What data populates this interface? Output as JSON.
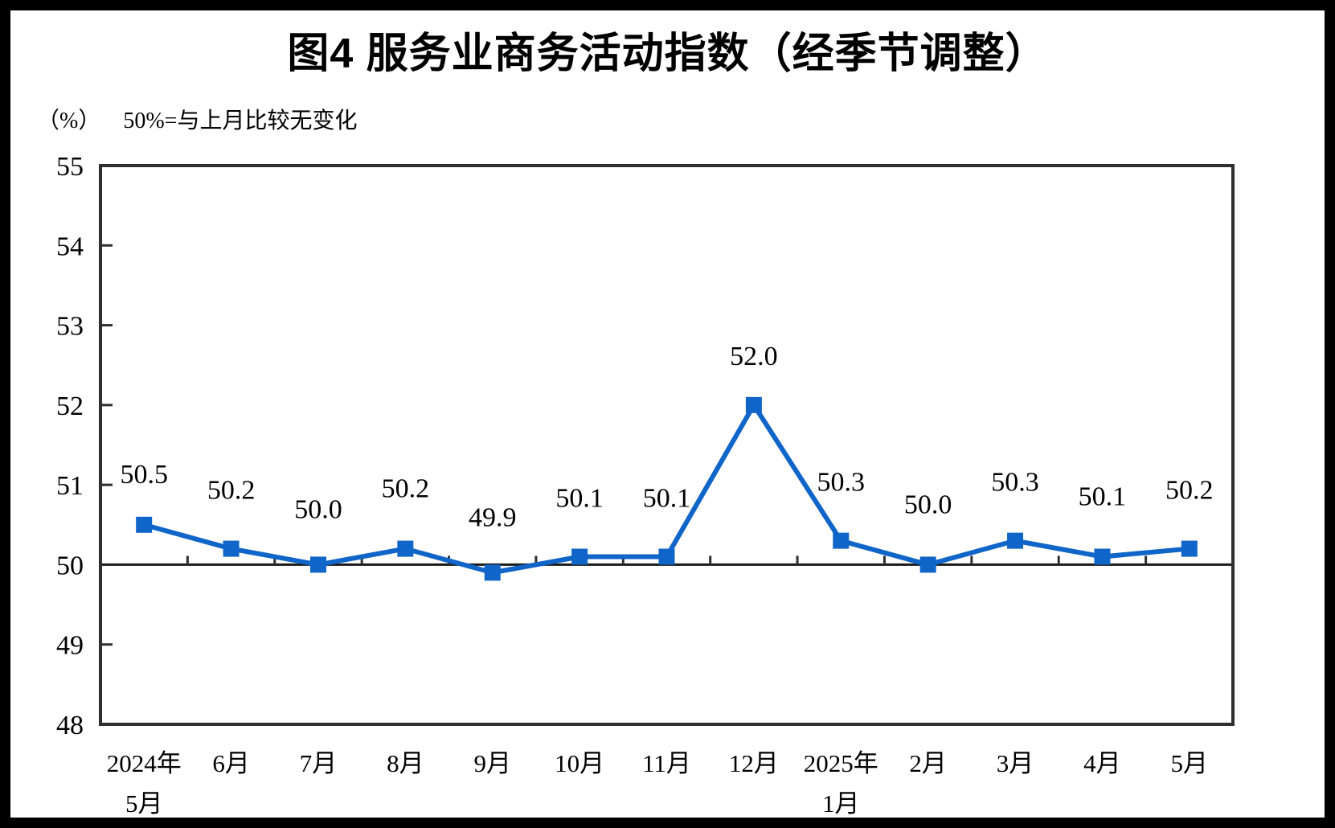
{
  "header": {
    "title": "图4 服务业商务活动指数（经季节调整）",
    "unit_label": "（%）",
    "subtitle": "50%=与上月比较无变化"
  },
  "chart_data": {
    "type": "line",
    "title": "图4 服务业商务活动指数（经季节调整）",
    "unit_label": "（%）",
    "subtitle": "50%=与上月比较无变化",
    "categories": [
      "2024年5月",
      "6月",
      "7月",
      "8月",
      "9月",
      "10月",
      "11月",
      "12月",
      "2025年1月",
      "2月",
      "3月",
      "4月",
      "5月"
    ],
    "x_tick_line1": [
      "2024年",
      "6月",
      "7月",
      "8月",
      "9月",
      "10月",
      "11月",
      "12月",
      "2025年",
      "2月",
      "3月",
      "4月",
      "5月"
    ],
    "x_tick_line2": [
      "5月",
      "",
      "",
      "",
      "",
      "",
      "",
      "",
      "1月",
      "",
      "",
      "",
      ""
    ],
    "series": [
      {
        "name": "服务业商务活动指数",
        "values": [
          50.5,
          50.2,
          50.0,
          50.2,
          49.9,
          50.1,
          50.1,
          52.0,
          50.3,
          50.0,
          50.3,
          50.1,
          50.2
        ]
      }
    ],
    "data_labels": [
      "50.5",
      "50.2",
      "50.0",
      "50.2",
      "49.9",
      "50.1",
      "50.1",
      "52.0",
      "50.3",
      "50.0",
      "50.3",
      "50.1",
      "50.2"
    ],
    "ylim": [
      48,
      55
    ],
    "y_ticks": [
      48,
      49,
      50,
      51,
      52,
      53,
      54,
      55
    ],
    "reference_line": 50,
    "grid": false,
    "legend": false,
    "marker": "square",
    "colors": {
      "line": "#1065C9",
      "frame": "#2F2F2F",
      "reference_line": "#1A1A1A",
      "text": "#000000",
      "sheet": "#FFFFFF",
      "border": "#000000"
    },
    "label_dy": [
      -52,
      -62,
      -58,
      -64,
      -58,
      -62,
      -62,
      -50,
      -62,
      -64,
      -62,
      -64,
      -62
    ]
  }
}
